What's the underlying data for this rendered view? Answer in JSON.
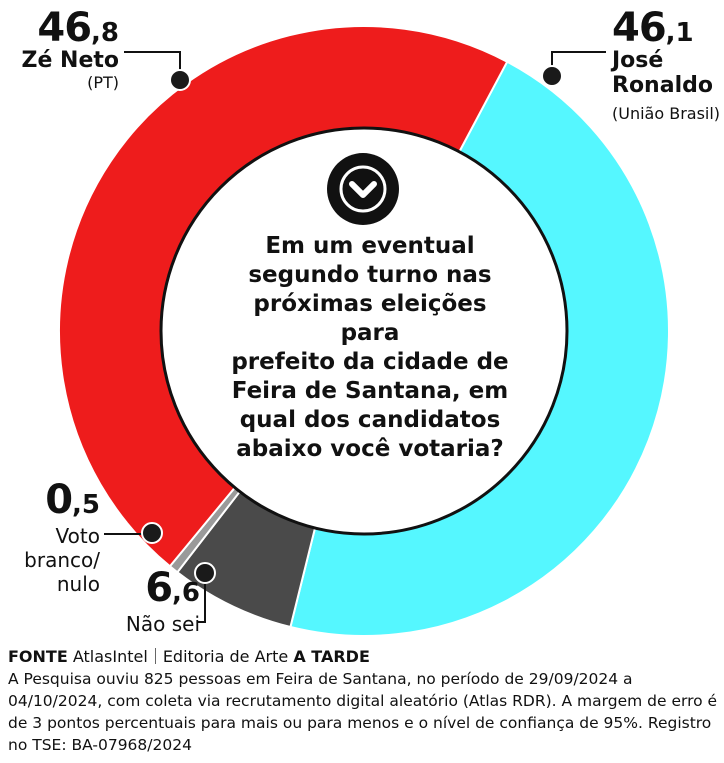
{
  "chart_data": {
    "type": "pie",
    "title": "Em um eventual segundo turno nas próximas eleições para prefeito da cidade de Feira de Santana, em qual dos candidatos abaixo você votaria?",
    "slices": [
      {
        "label": "Zé Neto",
        "sub": "(PT)",
        "value": 46.8,
        "int": "46",
        "dec": ",8",
        "color": "#ee1c1c"
      },
      {
        "label": "José Ronaldo",
        "line1": "José",
        "line2": "Ronaldo",
        "sub": "(União Brasil)",
        "value": 46.1,
        "int": "46",
        "dec": ",1",
        "color": "#55f7ff"
      },
      {
        "label": "Não sei",
        "value": 6.6,
        "int": "6",
        "dec": ",6",
        "color": "#4a4a4a"
      },
      {
        "label": "Voto branco/ nulo",
        "line1": "Voto",
        "line2": "branco/",
        "line3": "nulo",
        "value": 0.5,
        "int": "0",
        "dec": ",5",
        "color": "#9a9a9a"
      }
    ]
  },
  "question_lines": [
    "Em um eventual",
    "segundo turno nas",
    "próximas eleições para",
    "prefeito da cidade de",
    "Feira de Santana, em",
    "qual dos candidatos",
    "abaixo você votaria?"
  ],
  "footer": {
    "fonte_label": "FONTE",
    "fonte_value": "AtlasIntel",
    "editoria_label": "Editoria de Arte",
    "editoria_value": "A TARDE",
    "description": "A Pesquisa ouviu 825 pessoas em Feira de Santana, no período de 29/09/2024 a 04/10/2024, com coleta via recrutamento digital aleatório (Atlas RDR). A margem de erro é de 3 pontos percentuais para mais ou para menos e o nível de confiança de 95%. Registro no TSE: BA-07968/2024"
  },
  "colors": {
    "leader_line": "#111111",
    "center_icon": "#111111",
    "ring_stroke": "#ffffff"
  },
  "icon": "chevron-down-circle-icon"
}
